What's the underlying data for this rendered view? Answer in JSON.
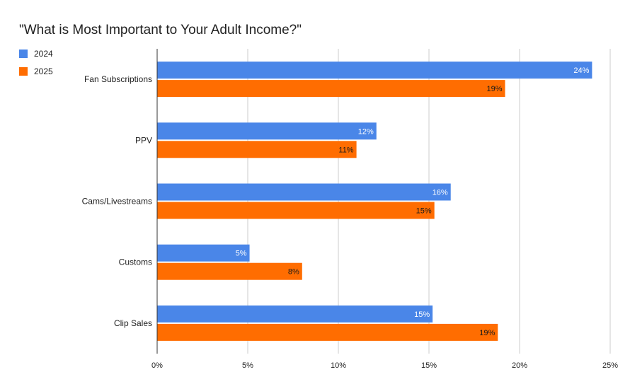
{
  "chart_data": {
    "type": "bar",
    "orientation": "horizontal",
    "title": "\"What is Most Important to Your Adult Income?\"",
    "categories": [
      "Fan Subscriptions",
      "PPV",
      "Cams/Livestreams",
      "Customs",
      "Clip Sales"
    ],
    "series": [
      {
        "name": "2024",
        "color": "#4a86e8",
        "values": [
          24,
          12.1,
          16.2,
          5.1,
          15.2
        ],
        "labels": [
          "24%",
          "12%",
          "16%",
          "5%",
          "15%"
        ],
        "label_color": "#ffffff"
      },
      {
        "name": "2025",
        "color": "#ff6d01",
        "values": [
          19.2,
          11,
          15.3,
          8,
          18.8
        ],
        "labels": [
          "19%",
          "11%",
          "15%",
          "8%",
          "19%"
        ],
        "label_color": "#1a1a1a"
      }
    ],
    "xlim": [
      0,
      25
    ],
    "xticks": [
      0,
      5,
      10,
      15,
      20,
      25
    ],
    "xtick_labels": [
      "0%",
      "5%",
      "10%",
      "15%",
      "20%",
      "25%"
    ],
    "grid": true,
    "legend_position": "top-left"
  }
}
